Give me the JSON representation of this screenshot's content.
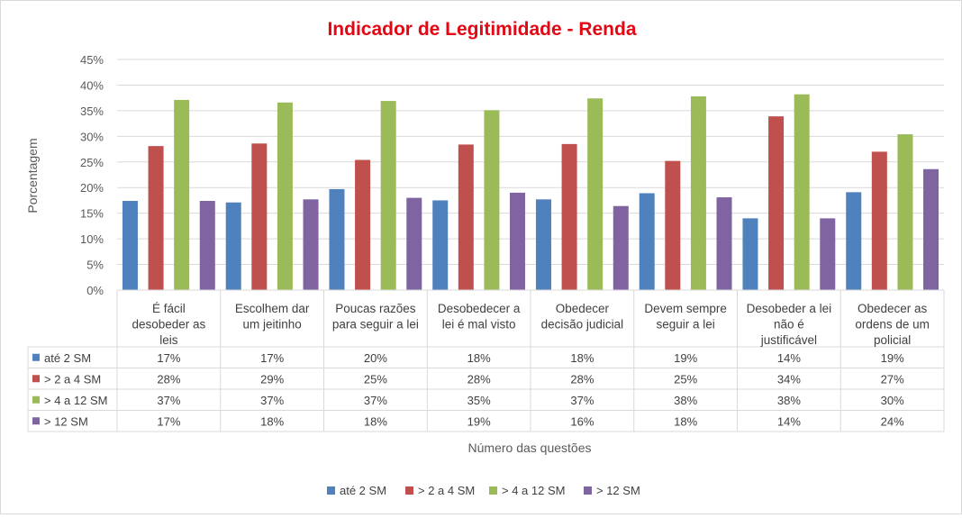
{
  "chart_data": {
    "type": "bar",
    "title": "Indicador de Legitimidade - Renda",
    "xlabel": "Número das questões",
    "ylabel": "Porcentagem",
    "ylim": [
      0,
      45
    ],
    "ytick_step": 5,
    "ytick_suffix": "%",
    "grid": true,
    "legend_position": "bottom",
    "title_color": "#e30613",
    "categories": [
      [
        "É fácil",
        "desobeder as",
        "leis"
      ],
      [
        "Escolhem dar",
        "um jeitinho"
      ],
      [
        "Poucas razões",
        "para seguir a lei"
      ],
      [
        "Desobedecer a",
        "lei é mal visto"
      ],
      [
        "Obedecer",
        "decisão judicial"
      ],
      [
        "Devem sempre",
        "seguir a lei"
      ],
      [
        "Desobeder a lei",
        "não é",
        "justificável"
      ],
      [
        "Obedecer as",
        "ordens de um",
        "policial"
      ]
    ],
    "series": [
      {
        "name": "até 2 SM",
        "color": "#4f81bd",
        "values": [
          17.4,
          17.1,
          19.7,
          17.5,
          17.7,
          18.9,
          14.0,
          19.1
        ],
        "labels": [
          "17%",
          "17%",
          "20%",
          "18%",
          "18%",
          "19%",
          "14%",
          "19%"
        ]
      },
      {
        "name": "> 2 a 4 SM",
        "color": "#c0504d",
        "values": [
          28.1,
          28.6,
          25.4,
          28.4,
          28.5,
          25.2,
          33.9,
          27.0
        ],
        "labels": [
          "28%",
          "29%",
          "25%",
          "28%",
          "28%",
          "25%",
          "34%",
          "27%"
        ]
      },
      {
        "name": "> 4 a 12 SM",
        "color": "#9bbb59",
        "values": [
          37.1,
          36.6,
          36.9,
          35.1,
          37.4,
          37.8,
          38.2,
          30.4
        ],
        "labels": [
          "37%",
          "37%",
          "37%",
          "35%",
          "37%",
          "38%",
          "38%",
          "30%"
        ]
      },
      {
        "name": "> 12 SM",
        "color": "#8064a2",
        "values": [
          17.4,
          17.7,
          18.0,
          19.0,
          16.4,
          18.1,
          14.0,
          23.6
        ],
        "labels": [
          "17%",
          "18%",
          "18%",
          "19%",
          "16%",
          "18%",
          "14%",
          "24%"
        ]
      }
    ]
  }
}
